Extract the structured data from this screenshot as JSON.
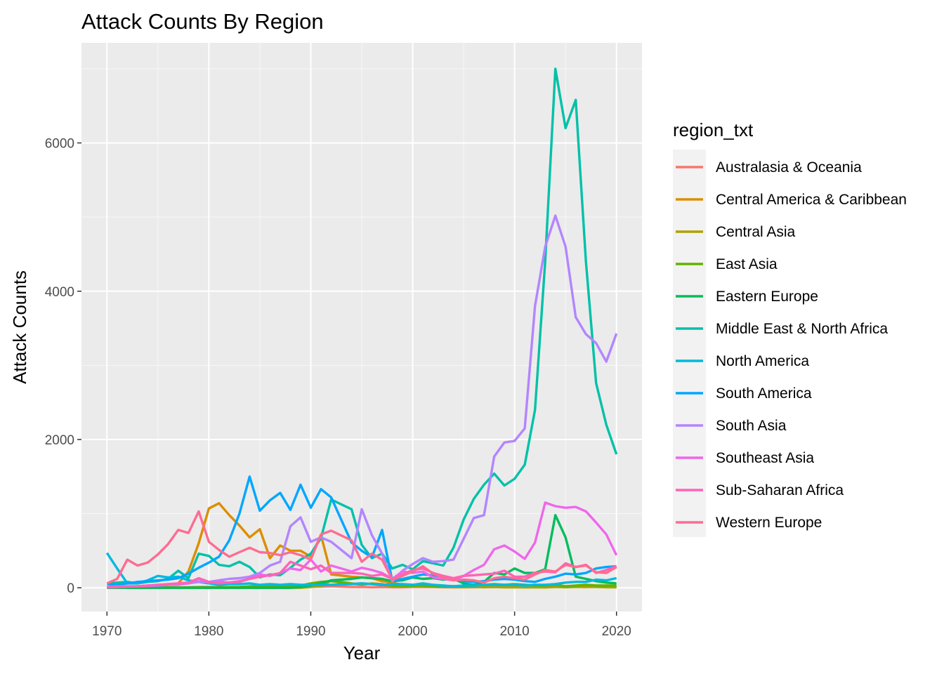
{
  "chart_data": {
    "type": "line",
    "title": "Attack Counts By Region",
    "xlabel": "Year",
    "ylabel": "Attack Counts",
    "xlim": [
      1967.5,
      2022.5
    ],
    "ylim": [
      -320,
      7350
    ],
    "x_ticks": [
      1970,
      1980,
      1990,
      2000,
      2010,
      2020
    ],
    "y_ticks": [
      0,
      2000,
      4000,
      6000
    ],
    "grid": true,
    "legend": {
      "title": "region_txt",
      "position": "right"
    },
    "x": [
      1970,
      1971,
      1972,
      1973,
      1974,
      1975,
      1976,
      1977,
      1978,
      1979,
      1980,
      1981,
      1982,
      1983,
      1984,
      1985,
      1986,
      1987,
      1988,
      1989,
      1990,
      1991,
      1992,
      1994,
      1995,
      1996,
      1997,
      1998,
      1999,
      2000,
      2001,
      2002,
      2003,
      2004,
      2005,
      2006,
      2007,
      2008,
      2009,
      2010,
      2011,
      2012,
      2013,
      2014,
      2015,
      2016,
      2017,
      2018,
      2019,
      2020
    ],
    "series": [
      {
        "name": "Australasia & Oceania",
        "color": "#F8766D",
        "values": [
          1,
          1,
          2,
          1,
          2,
          3,
          4,
          5,
          8,
          10,
          12,
          10,
          8,
          6,
          10,
          12,
          15,
          12,
          14,
          15,
          18,
          16,
          20,
          10,
          12,
          8,
          10,
          8,
          8,
          10,
          12,
          10,
          8,
          6,
          8,
          8,
          10,
          12,
          10,
          10,
          15,
          14,
          20,
          18,
          20,
          22,
          16,
          18,
          15,
          12
        ]
      },
      {
        "name": "Central America & Caribbean",
        "color": "#DB8E00",
        "values": [
          7,
          5,
          3,
          2,
          2,
          10,
          40,
          60,
          220,
          600,
          1070,
          1140,
          980,
          840,
          680,
          790,
          400,
          570,
          500,
          500,
          420,
          710,
          180,
          150,
          140,
          130,
          90,
          70,
          40,
          40,
          30,
          20,
          20,
          20,
          20,
          20,
          20,
          20,
          10,
          10,
          10,
          10,
          15,
          20,
          10,
          15,
          10,
          20,
          15,
          10
        ]
      },
      {
        "name": "Central Asia",
        "color": "#AEA200",
        "values": [
          0,
          0,
          0,
          0,
          0,
          0,
          0,
          0,
          0,
          0,
          0,
          0,
          0,
          0,
          0,
          0,
          0,
          0,
          0,
          0,
          10,
          20,
          100,
          60,
          40,
          60,
          50,
          20,
          30,
          20,
          20,
          15,
          10,
          10,
          8,
          10,
          8,
          10,
          6,
          8,
          5,
          6,
          5,
          10,
          8,
          10,
          12,
          10,
          8,
          6
        ]
      },
      {
        "name": "East Asia",
        "color": "#64B200",
        "values": [
          2,
          5,
          3,
          2,
          2,
          3,
          5,
          4,
          6,
          5,
          5,
          8,
          10,
          12,
          20,
          25,
          30,
          20,
          25,
          30,
          60,
          80,
          90,
          50,
          60,
          50,
          40,
          30,
          20,
          30,
          30,
          20,
          20,
          20,
          20,
          30,
          40,
          50,
          40,
          50,
          40,
          30,
          30,
          40,
          20,
          30,
          40,
          30,
          30,
          30
        ]
      },
      {
        "name": "Eastern Europe",
        "color": "#00BD5C",
        "values": [
          0,
          0,
          0,
          0,
          0,
          0,
          0,
          0,
          0,
          0,
          0,
          0,
          0,
          0,
          0,
          0,
          0,
          0,
          0,
          10,
          30,
          60,
          100,
          120,
          140,
          130,
          120,
          90,
          100,
          140,
          120,
          130,
          110,
          120,
          60,
          40,
          80,
          200,
          180,
          260,
          200,
          200,
          250,
          980,
          680,
          150,
          120,
          90,
          70,
          60
        ]
      },
      {
        "name": "Middle East & North Africa",
        "color": "#00C1A7",
        "values": [
          60,
          70,
          80,
          60,
          80,
          90,
          120,
          230,
          130,
          460,
          430,
          310,
          290,
          350,
          280,
          140,
          180,
          170,
          270,
          380,
          460,
          670,
          1190,
          1060,
          580,
          400,
          460,
          260,
          310,
          250,
          360,
          330,
          300,
          540,
          920,
          1200,
          1390,
          1540,
          1380,
          1470,
          1660,
          2400,
          4400,
          7000,
          6200,
          6580,
          4400,
          2760,
          2200,
          1800
        ]
      },
      {
        "name": "North America",
        "color": "#00BADE",
        "values": [
          470,
          260,
          60,
          60,
          100,
          160,
          140,
          150,
          100,
          80,
          60,
          40,
          50,
          50,
          60,
          40,
          50,
          40,
          50,
          40,
          40,
          40,
          40,
          50,
          60,
          50,
          40,
          50,
          50,
          40,
          60,
          40,
          30,
          20,
          30,
          30,
          40,
          40,
          40,
          40,
          30,
          40,
          40,
          50,
          70,
          80,
          80,
          110,
          100,
          130
        ]
      },
      {
        "name": "South America",
        "color": "#00A6FF",
        "values": [
          50,
          40,
          60,
          80,
          90,
          100,
          110,
          130,
          190,
          270,
          340,
          420,
          640,
          1000,
          1500,
          1040,
          1180,
          1280,
          1050,
          1390,
          1080,
          1330,
          1220,
          610,
          500,
          410,
          780,
          90,
          120,
          150,
          180,
          170,
          140,
          110,
          90,
          80,
          90,
          110,
          120,
          110,
          90,
          80,
          120,
          150,
          190,
          180,
          200,
          260,
          280,
          290
        ]
      },
      {
        "name": "South Asia",
        "color": "#B385FF",
        "values": [
          5,
          10,
          15,
          20,
          25,
          30,
          40,
          40,
          60,
          80,
          80,
          100,
          120,
          130,
          150,
          200,
          300,
          350,
          830,
          950,
          620,
          680,
          620,
          400,
          1060,
          710,
          460,
          90,
          230,
          320,
          400,
          350,
          360,
          380,
          660,
          940,
          980,
          1770,
          1960,
          1980,
          2150,
          3800,
          4600,
          5020,
          4600,
          3650,
          3420,
          3300,
          3050,
          3430
        ]
      },
      {
        "name": "Southeast Asia",
        "color": "#EF67EB",
        "values": [
          10,
          20,
          20,
          20,
          30,
          40,
          40,
          50,
          60,
          120,
          70,
          80,
          70,
          90,
          120,
          180,
          160,
          200,
          260,
          240,
          380,
          220,
          300,
          220,
          270,
          240,
          200,
          120,
          220,
          200,
          220,
          140,
          120,
          100,
          160,
          240,
          310,
          520,
          570,
          490,
          390,
          610,
          1150,
          1100,
          1080,
          1090,
          1030,
          880,
          720,
          440
        ]
      },
      {
        "name": "Sub-Saharan Africa",
        "color": "#FF63B6",
        "values": [
          10,
          10,
          20,
          20,
          30,
          40,
          50,
          60,
          70,
          130,
          80,
          60,
          70,
          80,
          120,
          150,
          170,
          200,
          350,
          300,
          250,
          300,
          200,
          200,
          190,
          160,
          180,
          120,
          180,
          240,
          260,
          200,
          160,
          130,
          160,
          170,
          180,
          190,
          230,
          150,
          150,
          200,
          220,
          210,
          330,
          280,
          310,
          200,
          240,
          290
        ]
      },
      {
        "name": "Western Europe",
        "color": "#FF6C91",
        "values": [
          60,
          120,
          380,
          300,
          340,
          450,
          590,
          780,
          740,
          1030,
          620,
          510,
          420,
          480,
          540,
          480,
          470,
          440,
          480,
          440,
          380,
          720,
          770,
          640,
          350,
          460,
          380,
          110,
          160,
          220,
          290,
          190,
          140,
          100,
          110,
          100,
          70,
          130,
          150,
          130,
          110,
          180,
          240,
          220,
          310,
          280,
          300,
          210,
          200,
          280
        ]
      }
    ]
  }
}
